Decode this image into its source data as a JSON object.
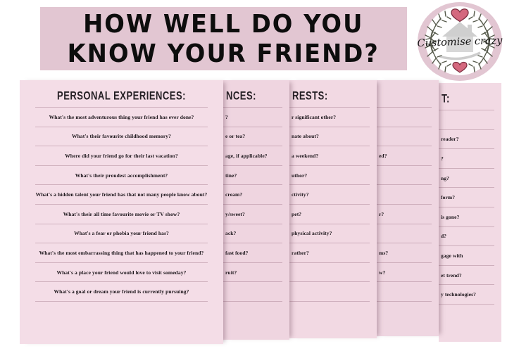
{
  "title": {
    "line1": "HOW WELL DO YOU",
    "line2": "KNOW YOUR FRIEND?"
  },
  "logo": {
    "brand_text": "Customise crazy"
  },
  "sheets": [
    {
      "header": "PERSONAL EXPERIENCES:",
      "questions": [
        "What's the most adventurous thing your friend has ever done?",
        "What's their favourite childhood memory?",
        "Where did your friend go for their last vacation?",
        "What's their proudest accomplishment?",
        "What's a hidden talent your friend has that not many people know about?",
        "What's their all time favourite movie or TV show?",
        "What's a fear or phobia your friend has?",
        "What's the most embarrassing thing that has happened to your friend?",
        "What's a place your friend would love to visit someday?",
        "What's a goal or dream your friend is currently pursuing?"
      ]
    },
    {
      "header_fragment": "NCES:",
      "fragments": [
        "?",
        "e or tea?",
        "age, if applicable?",
        "tine?",
        "cream?",
        "y/sweet?",
        "ack?",
        "fast food?",
        "ruit?",
        ""
      ]
    },
    {
      "header_fragment": "RESTS:",
      "fragments": [
        "r significant other?",
        "nate about?",
        "a weekend?",
        "uthor?",
        "ctivity?",
        "pet?",
        "physical activity?",
        "rather?",
        "",
        ""
      ]
    },
    {
      "header_fragment": "",
      "fragments": [
        "",
        "",
        "ed?",
        "",
        "",
        "r?",
        "",
        "ms?",
        "w?",
        ""
      ]
    },
    {
      "header_fragment": "T:",
      "fragments": [
        "",
        "reader?",
        "?",
        "ng?",
        "form?",
        "is gone?",
        "d?",
        "gage with",
        "et trend?",
        "y technologies?"
      ]
    }
  ],
  "colors": {
    "banner_bg": "#e2c6d2",
    "sheet_bg": "#f2d9e3",
    "title_color": "#0d0d0d",
    "line_color": "rgba(140,95,115,0.35)",
    "logo_ring": "#e2c6d2",
    "heart_color": "#d4687e",
    "heart_outline": "#7c2e40",
    "wreath_color": "#565a4b",
    "house_color": "#c6c6c6"
  }
}
